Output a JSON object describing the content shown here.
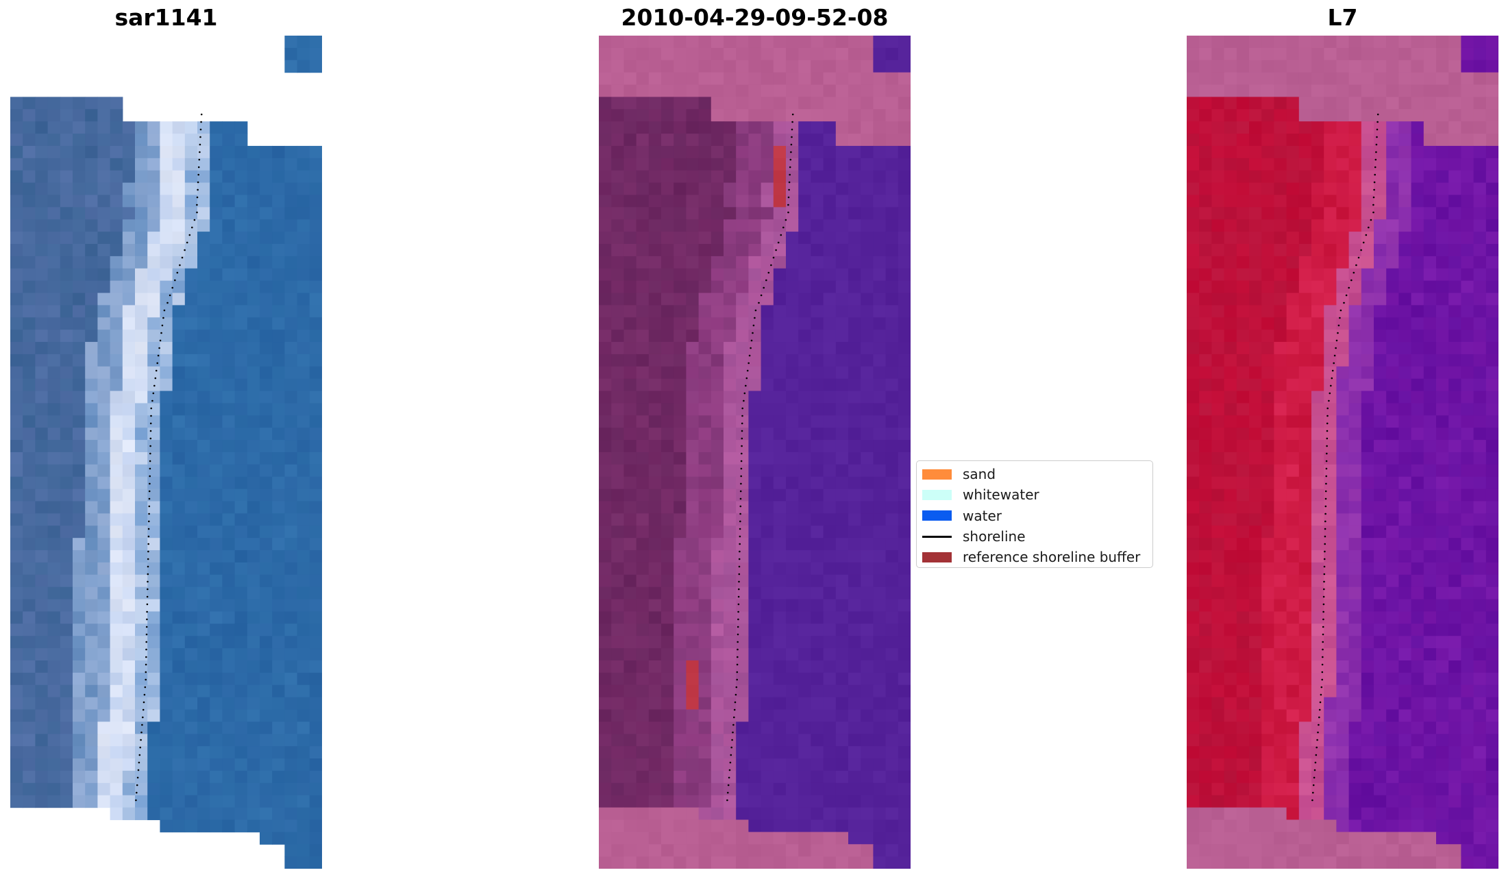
{
  "panels": [
    {
      "title": "sar1141",
      "kind": "rgb"
    },
    {
      "title": "2010-04-29-09-52-08",
      "kind": "classified"
    },
    {
      "title": "L7",
      "kind": "mndwi"
    }
  ],
  "legend": {
    "items": [
      {
        "label": "sand",
        "color": "#ff8c3b",
        "type": "patch"
      },
      {
        "label": "whitewater",
        "color": "#ccfff8",
        "type": "patch"
      },
      {
        "label": "water",
        "color": "#0a5cf0",
        "type": "patch"
      },
      {
        "label": "shoreline",
        "color": "#000000",
        "type": "line"
      },
      {
        "label": "reference shoreline buffer",
        "color": "#a33236",
        "type": "patch"
      }
    ]
  },
  "colors": {
    "nodata_pink": "#b95f93",
    "ocean_blue": "#2f6fab",
    "classified_water": "#55229a",
    "classified_land": "#6f2a63",
    "mndwi_land": "#c7103e",
    "mndwi_water": "#6a0fa3"
  }
}
